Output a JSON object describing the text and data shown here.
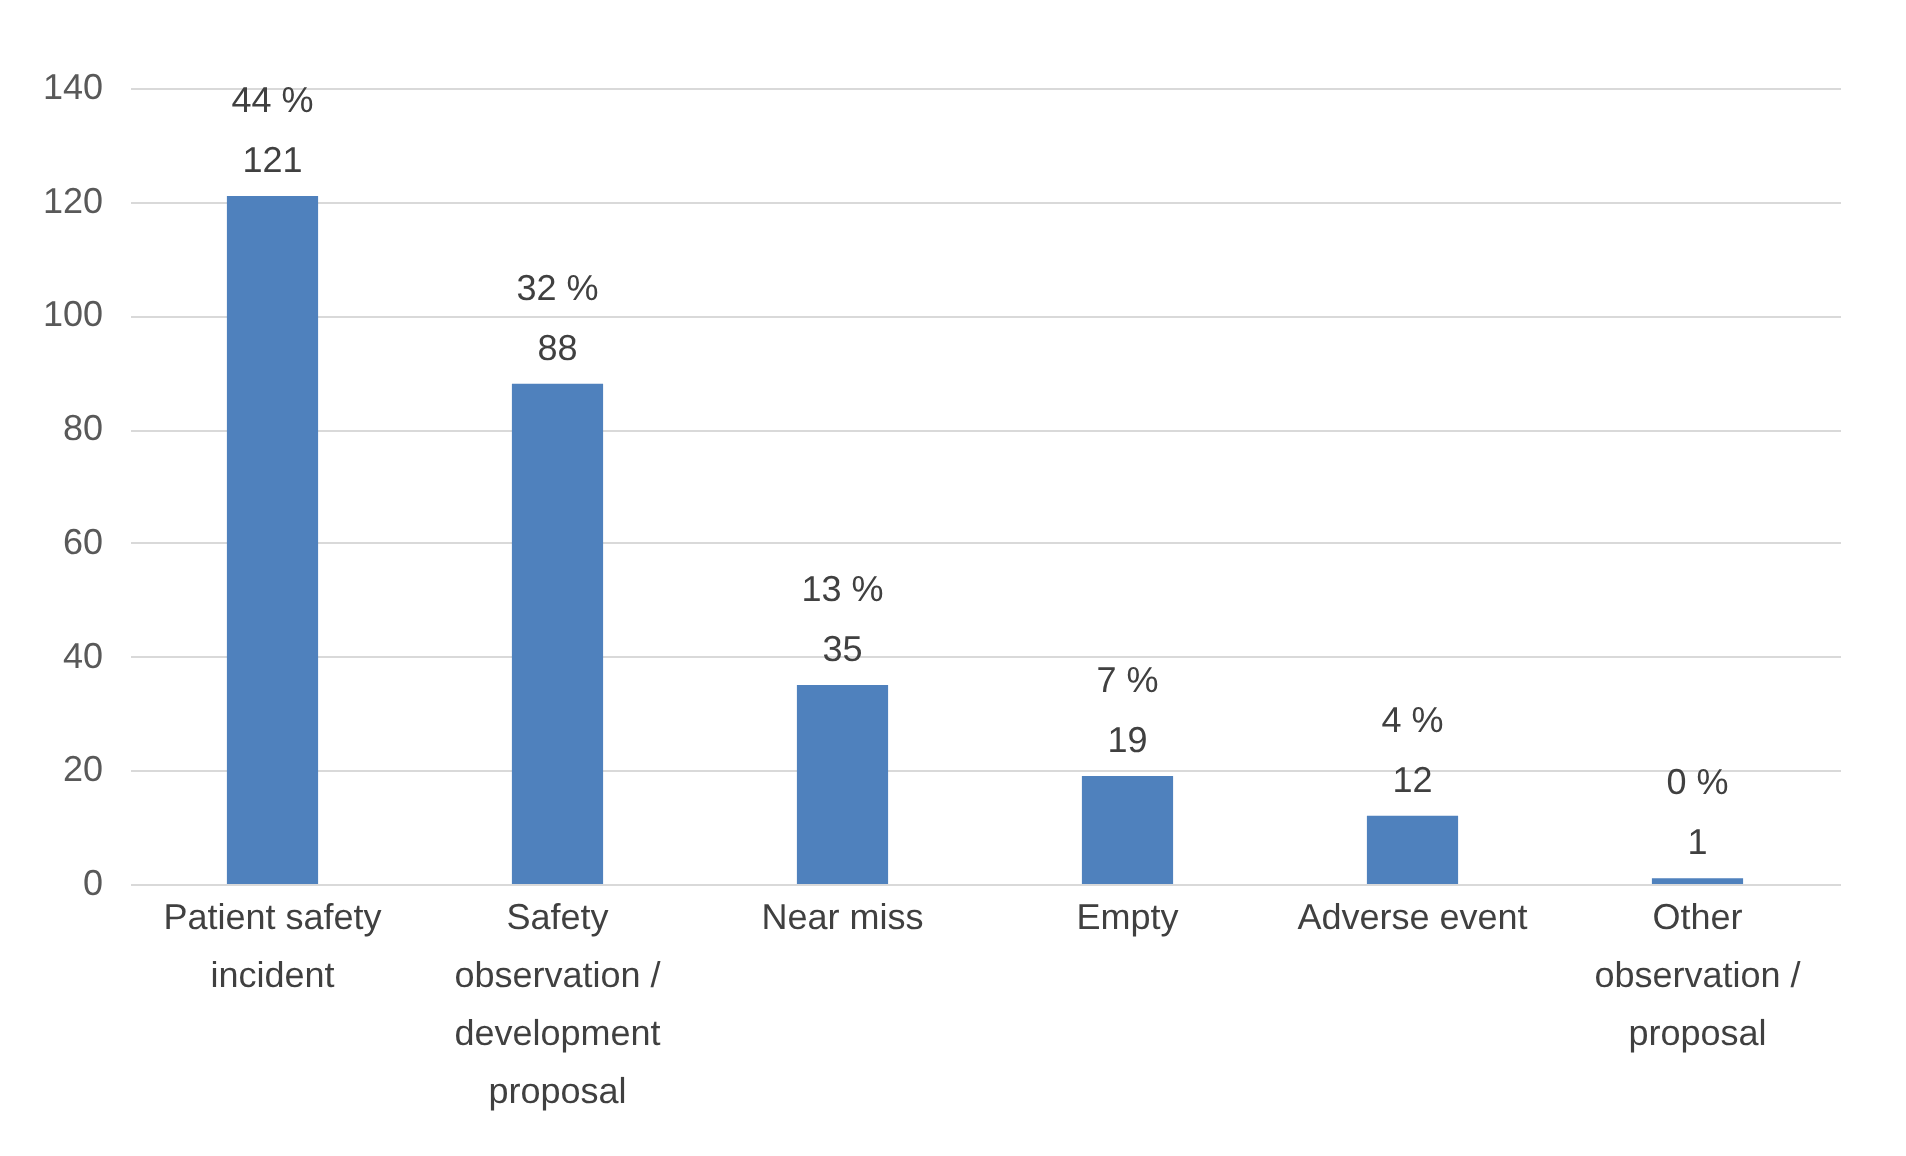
{
  "chart_data": {
    "type": "bar",
    "categories": [
      "Patient safety incident",
      "Safety observation / development proposal",
      "Near miss",
      "Empty",
      "Adverse event",
      "Other observation / proposal"
    ],
    "values": [
      121,
      88,
      35,
      19,
      12,
      1
    ],
    "value_labels": [
      "44 %\n121",
      "32 %\n88",
      "13 %\n35",
      "7 %\n19",
      "4 %\n12",
      "0 %\n1"
    ],
    "color": "#4f81bd",
    "ylim": [
      0,
      140
    ],
    "yticks": [
      0,
      20,
      40,
      60,
      80,
      100,
      120,
      140
    ],
    "grid": "y"
  }
}
